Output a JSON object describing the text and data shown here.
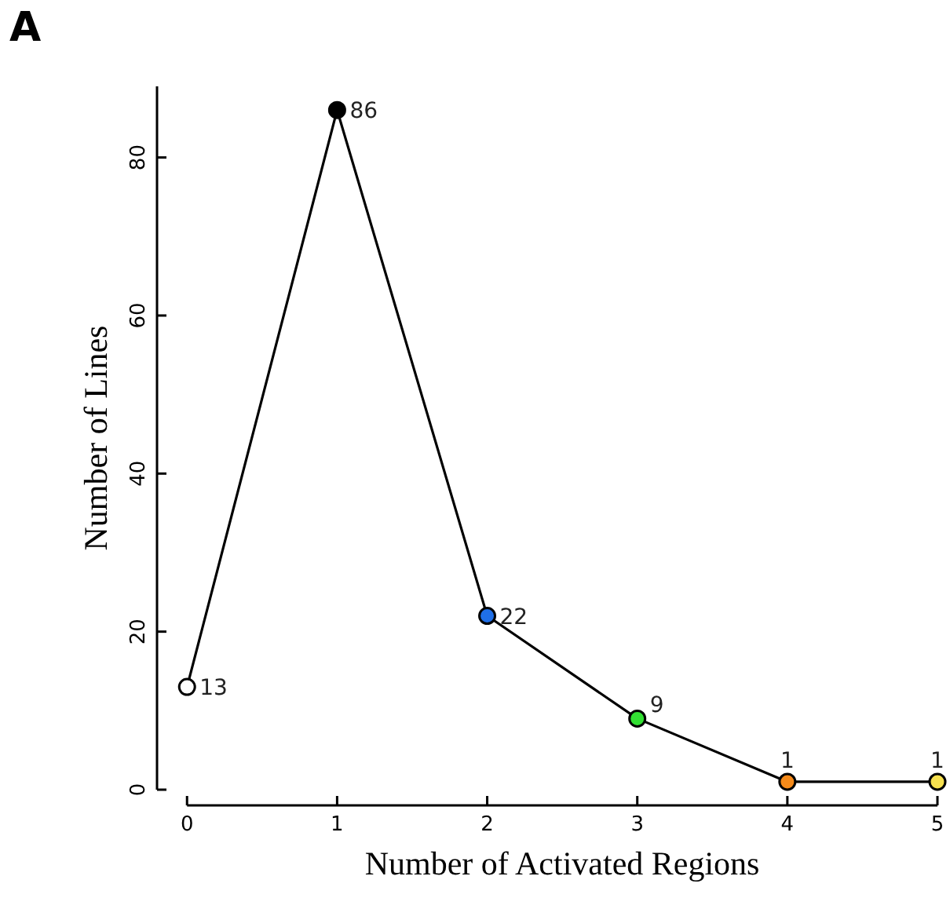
{
  "chart_data": {
    "type": "line",
    "title": "A",
    "xlabel": "Number of Activated Regions",
    "ylabel": "Number of Lines",
    "x": [
      0,
      1,
      2,
      3,
      4,
      5
    ],
    "series": [
      {
        "color": "#000000",
        "values": [
          13,
          86,
          22,
          9,
          1,
          1
        ],
        "colors": [
          "#ffffff",
          "#000000",
          "#1f6fe8",
          "#33e033",
          "#f58a1a",
          "#f7e14f"
        ]
      }
    ],
    "xlim": [
      -0.2,
      5
    ],
    "xticks": [
      0,
      1,
      2,
      3,
      4,
      5
    ],
    "ylim": [
      0,
      89
    ],
    "yticks": [
      0,
      20,
      40,
      60,
      80
    ],
    "marker": "circle",
    "line_style": "solid",
    "data_labels": true,
    "grid": false
  }
}
